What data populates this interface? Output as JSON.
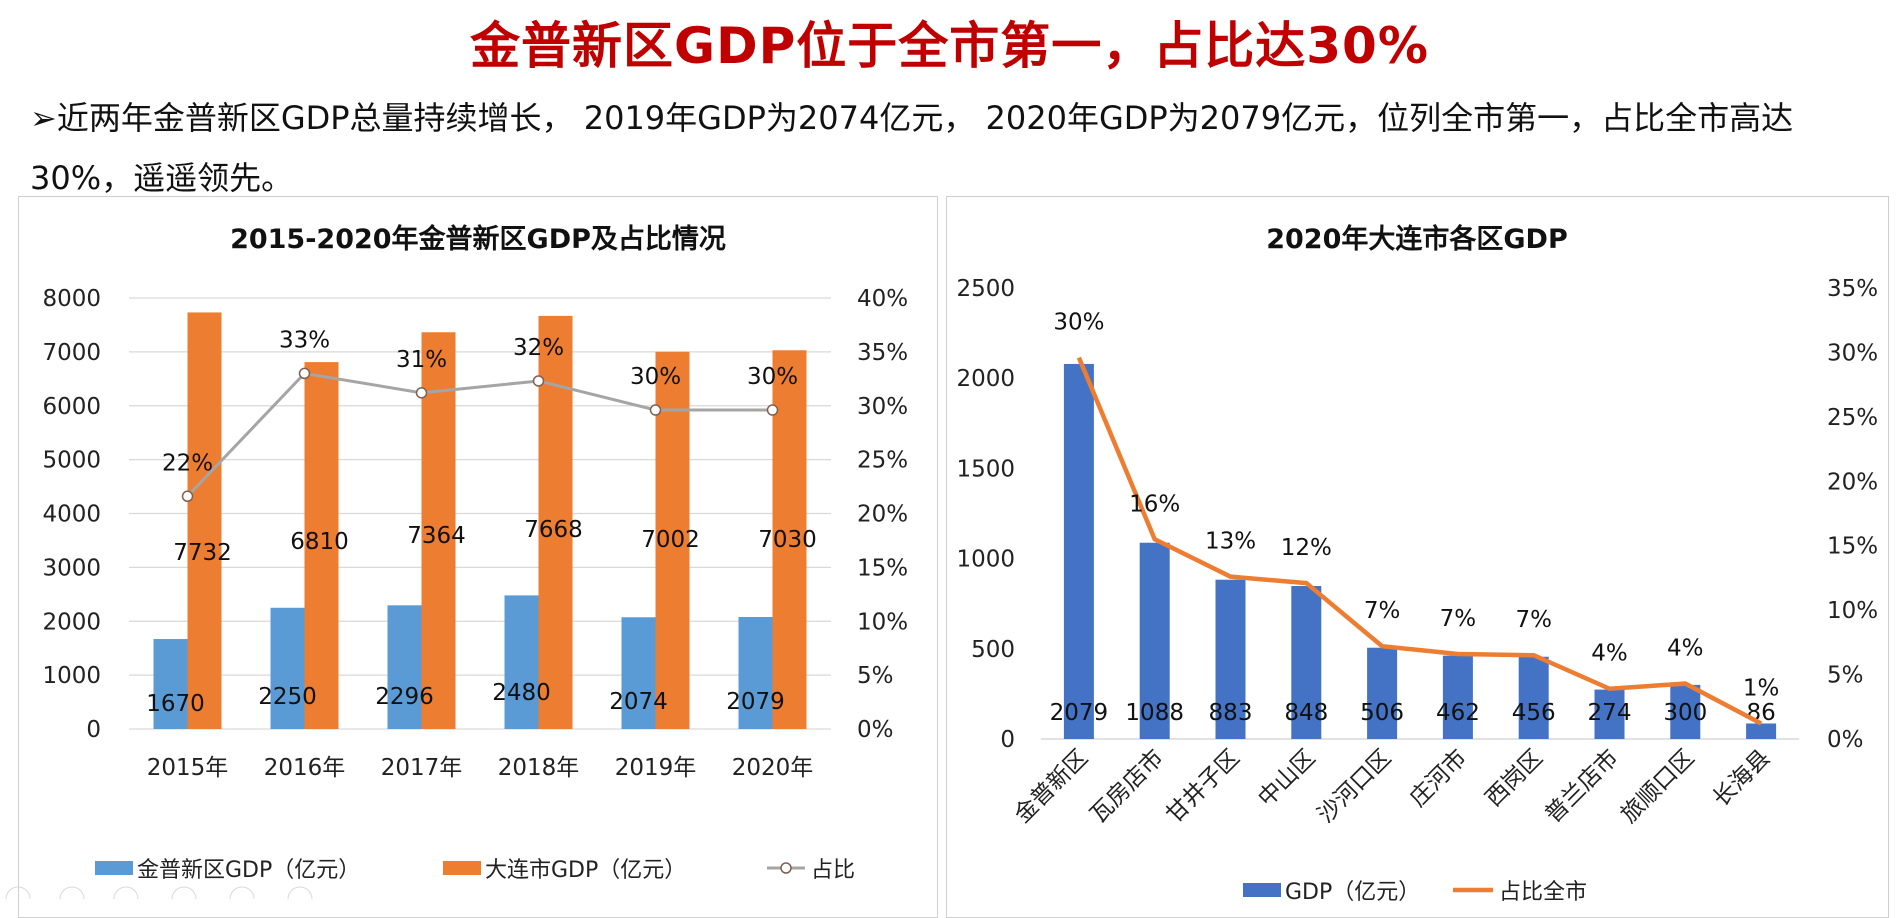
{
  "title": "金普新区GDP位于全市第一，占比达30%",
  "paragraph": "➢近两年金普新区GDP总量持续增长， 2019年GDP为2074亿元， 2020年GDP为2079亿元，位列全市第一，占比全市高达30%，遥遥领先。",
  "colors": {
    "title": "#c00000",
    "gdp_blue": "#5b9bd5",
    "dalian_orange": "#ed7d31",
    "share_gray": "#a5a5a5",
    "rank_blue": "#4472c4"
  },
  "chart_data": [
    {
      "type": "bar",
      "title": "2015-2020年金普新区GDP及占比情况",
      "categories": [
        "2015年",
        "2016年",
        "2017年",
        "2018年",
        "2019年",
        "2020年"
      ],
      "series": [
        {
          "name": "金普新区GDP（亿元）",
          "values": [
            1670,
            2250,
            2296,
            2480,
            2074,
            2079
          ],
          "labels": [
            "1670",
            "2250",
            "2296",
            "2480",
            "2074",
            "2079"
          ]
        },
        {
          "name": "大连市GDP（亿元）",
          "values": [
            7732,
            6810,
            7364,
            7668,
            7002,
            7030
          ],
          "labels": [
            "7732",
            "6810",
            "7364",
            "7668",
            "7002",
            "7030"
          ]
        },
        {
          "name": "占比",
          "axis": "right",
          "type": "line",
          "values": [
            21.6,
            33.0,
            31.2,
            32.3,
            29.6,
            29.6
          ],
          "labels": [
            "22%",
            "33%",
            "31%",
            "32%",
            "30%",
            "30%"
          ]
        }
      ],
      "ylim": [
        0,
        8000
      ],
      "yticks": [
        "0",
        "1000",
        "2000",
        "3000",
        "4000",
        "5000",
        "6000",
        "7000",
        "8000"
      ],
      "y2lim": [
        0,
        40
      ],
      "y2ticks": [
        "0%",
        "5%",
        "10%",
        "15%",
        "20%",
        "25%",
        "30%",
        "35%",
        "40%"
      ],
      "legend": [
        "金普新区GDP（亿元）",
        "大连市GDP（亿元）",
        "占比"
      ],
      "legend_position": "bottom",
      "grid": true
    },
    {
      "type": "bar",
      "title": "2020年大连市各区GDP",
      "categories": [
        "金普新区",
        "瓦房店市",
        "甘井子区",
        "中山区",
        "沙河口区",
        "庄河市",
        "西岗区",
        "普兰店市",
        "旅顺口区",
        "长海县"
      ],
      "series": [
        {
          "name": "GDP（亿元）",
          "values": [
            2079,
            1088,
            883,
            848,
            506,
            462,
            456,
            274,
            300,
            86
          ],
          "labels": [
            "2079",
            "1088",
            "883",
            "848",
            "506",
            "462",
            "456",
            "274",
            "300",
            "86"
          ]
        },
        {
          "name": "占比全市",
          "axis": "right",
          "type": "line",
          "values": [
            29.6,
            15.5,
            12.6,
            12.1,
            7.2,
            6.6,
            6.5,
            3.9,
            4.3,
            1.2
          ],
          "labels": [
            "30%",
            "16%",
            "13%",
            "12%",
            "7%",
            "7%",
            "7%",
            "4%",
            "4%",
            "1%"
          ]
        }
      ],
      "ylim": [
        0,
        2500
      ],
      "yticks": [
        "0",
        "500",
        "1000",
        "1500",
        "2000",
        "2500"
      ],
      "y2lim": [
        0,
        35
      ],
      "y2ticks": [
        "0%",
        "5%",
        "10%",
        "15%",
        "20%",
        "25%",
        "30%",
        "35%"
      ],
      "legend": [
        "GDP（亿元）",
        "占比全市"
      ],
      "legend_position": "bottom",
      "grid": false
    }
  ]
}
